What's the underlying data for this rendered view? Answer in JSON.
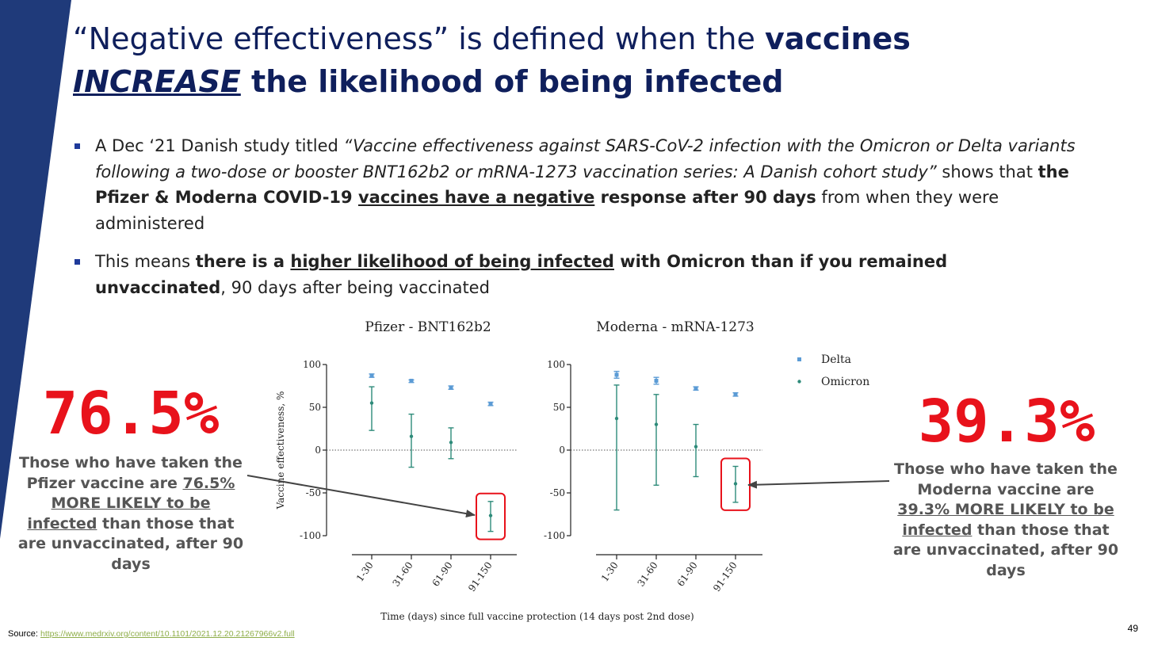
{
  "slide": {
    "title_part1": "“Negative effectiveness” is defined when the ",
    "title_bold1": "vaccines",
    "title_emph": "INCREASE",
    "title_bold2": " the likelihood of being infected",
    "bullet1": {
      "t1": "A Dec ‘21 Danish study titled ",
      "italic": "“Vaccine effectiveness against SARS-CoV-2 infection with the Omicron or Delta variants following a two-dose or booster BNT162b2 or mRNA-1273 vaccination series: A Danish cohort study”",
      "t2": " shows that ",
      "b1": "the Pfizer & Moderna COVID-19 ",
      "bu": "vaccines have a negative",
      "b2": " response after 90 days",
      "t3": " from when they were administered"
    },
    "bullet2": {
      "t1": "This means ",
      "b1": "there is a ",
      "bu": "higher likelihood of being infected",
      "b2": " with Omicron than if you remained unvaccinated",
      "t2": ", 90 days after being vaccinated"
    },
    "left_callout": {
      "pct": "76.5%",
      "t1": "Those who have taken the Pfizer vaccine are ",
      "u": "76.5% MORE LIKELY to be infected",
      "t2": " than those that are unvaccinated, after 90 days"
    },
    "right_callout": {
      "pct": "39.3%",
      "t1": "Those who have taken the Moderna vaccine are ",
      "u": "39.3% MORE LIKELY to be infected",
      "t2": " than those that are unvaccinated, after 90 days"
    },
    "source_label": "Source:",
    "source_url": "https://www.medrxiv.org/content/10.1101/2021.12.20.21267966v2.full",
    "page_number": "49",
    "colors": {
      "band": "#1f3a7a",
      "title": "#0f1f5c",
      "accent_red": "#e8121b",
      "delta": "#5b9bd5",
      "omicron": "#2e8b7a"
    }
  },
  "chart_data": [
    {
      "type": "scatter",
      "title": "Pfizer - BNT162b2",
      "ylabel": "Vaccine effectiveness, %",
      "xlabel": "Time (days) since full vaccine protection (14 days post 2nd dose)",
      "categories": [
        "1-30",
        "31-60",
        "61-90",
        "91-150"
      ],
      "ylim": [
        -100,
        100
      ],
      "yticks": [
        100,
        50,
        0,
        -50,
        -100
      ],
      "ytick_labels": [
        "100",
        "50",
        "0",
        "-50",
        "-100"
      ],
      "reference_line": 0,
      "highlight_category": "91-150",
      "series": [
        {
          "name": "Delta",
          "values": [
            87,
            81,
            73,
            54
          ],
          "ci_low": [
            85,
            79,
            71,
            52
          ],
          "ci_high": [
            89,
            82,
            75,
            56
          ]
        },
        {
          "name": "Omicron",
          "values": [
            55,
            16,
            9,
            -76.5
          ],
          "ci_low": [
            23,
            -20,
            -10,
            -95
          ],
          "ci_high": [
            74,
            42,
            26,
            -60
          ]
        }
      ]
    },
    {
      "type": "scatter",
      "title": "Moderna - mRNA-1273",
      "categories": [
        "1-30",
        "31-60",
        "61-90",
        "91-150"
      ],
      "ylim": [
        -100,
        100
      ],
      "yticks": [
        100,
        50,
        0,
        -50,
        -100
      ],
      "ytick_labels": [
        "100",
        "50",
        "0",
        "-50",
        "-100"
      ],
      "reference_line": 0,
      "highlight_category": "91-150",
      "legend": [
        "Delta",
        "Omicron"
      ],
      "legend_position": "top-right",
      "series": [
        {
          "name": "Delta",
          "values": [
            88,
            81,
            72,
            65
          ],
          "ci_low": [
            84,
            77,
            70,
            63
          ],
          "ci_high": [
            92,
            85,
            74,
            67
          ]
        },
        {
          "name": "Omicron",
          "values": [
            37,
            30,
            4,
            -39.3
          ],
          "ci_low": [
            -70,
            -41,
            -31,
            -61
          ],
          "ci_high": [
            76,
            65,
            30,
            -19
          ]
        }
      ]
    }
  ]
}
